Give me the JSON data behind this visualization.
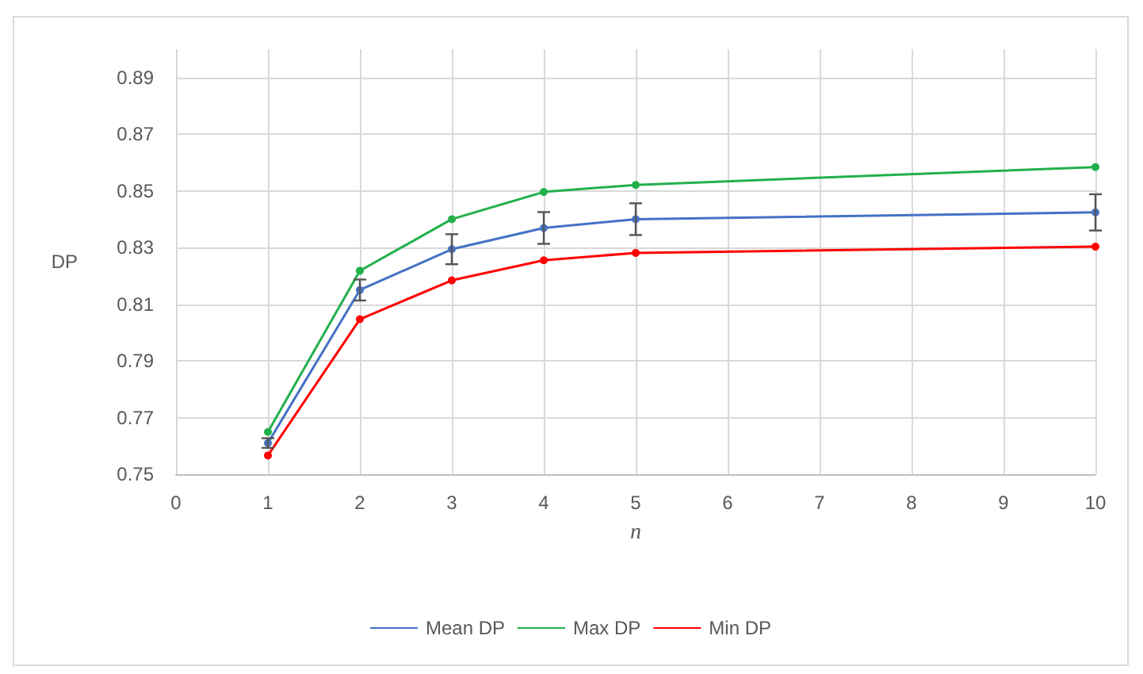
{
  "chart_data": {
    "type": "line",
    "xlabel": "n",
    "ylabel": "DP",
    "x": [
      1,
      2,
      3,
      4,
      5,
      10
    ],
    "series": [
      {
        "name": "Mean DP",
        "color": "#4472c4",
        "values": [
          0.761,
          0.815,
          0.8294,
          0.8369,
          0.84,
          0.8424
        ],
        "errors": [
          0.0017,
          0.0037,
          0.0053,
          0.0056,
          0.0056,
          0.0064
        ]
      },
      {
        "name": "Max DP",
        "color": "#22b04b",
        "values": [
          0.7649,
          0.8218,
          0.84,
          0.8496,
          0.8521,
          0.8584
        ]
      },
      {
        "name": "Min DP",
        "color": "#ff0000",
        "values": [
          0.7566,
          0.8047,
          0.8184,
          0.8255,
          0.8281,
          0.8303
        ]
      }
    ],
    "xlim": [
      0,
      10
    ],
    "xticks": [
      0,
      1,
      2,
      3,
      4,
      5,
      6,
      7,
      8,
      9,
      10
    ],
    "ylim": [
      0.75,
      0.9
    ],
    "yticks": [
      0.75,
      0.77,
      0.79,
      0.81,
      0.83,
      0.85,
      0.87,
      0.89
    ],
    "grid": true,
    "legend": "bottom",
    "marker": "circle",
    "line_style": "solid"
  }
}
